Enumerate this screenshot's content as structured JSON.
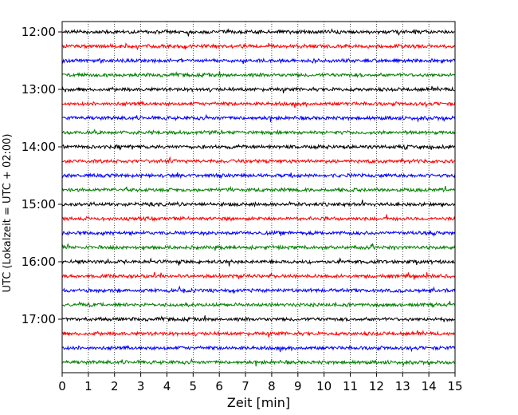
{
  "chart_data": {
    "type": "line",
    "title": "",
    "xlabel": "Zeit  [min]",
    "ylabel": "UTC (Lokalzeit = UTC + 02:00)",
    "xlim": [
      0,
      15
    ],
    "xticks": [
      "0",
      "1",
      "2",
      "3",
      "4",
      "5",
      "6",
      "7",
      "8",
      "9",
      "10",
      "11",
      "12",
      "13",
      "14",
      "15"
    ],
    "ytick_labels": [
      "12:00",
      "13:00",
      "14:00",
      "15:00",
      "16:00",
      "17:00"
    ],
    "trace_interval_min": 15,
    "trace_start": "12:00",
    "trace_count": 24,
    "trace_colors": [
      "#000000",
      "#ff0000",
      "#0000ff",
      "#008000"
    ],
    "grid": "vertical dotted at each minute",
    "series_description": "Seismogram helicorder: each horizontal trace is a 15-minute window of continuous ground-motion noise"
  }
}
